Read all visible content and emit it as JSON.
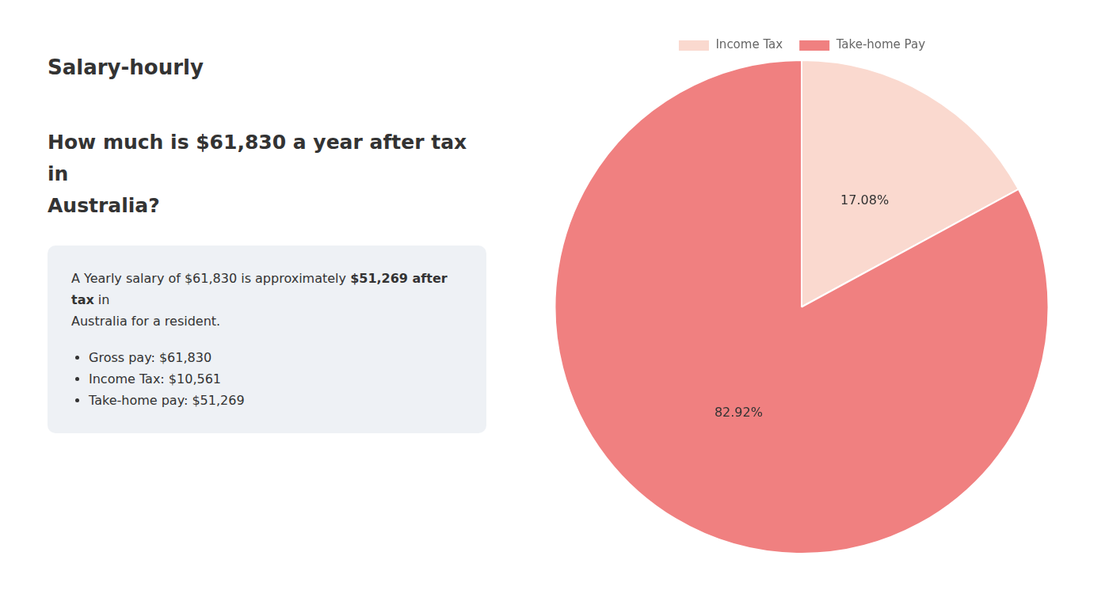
{
  "chart_data": {
    "type": "pie",
    "title": [
      "How much is $61,830 a year after tax in",
      "Australia?"
    ],
    "annotations": [
      "S",
      "alary-hourly",
      "A Yearly salary of $61,830 is approximately ",
      "$51,269 after tax",
      " in",
      "Australia for a resident.",
      "Gross pay: $61,830",
      "Income Tax: $10,561",
      "Take-home pay: $51,269"
    ],
    "categories": [
      "Income Tax",
      "Take-home Pay"
    ],
    "values": [
      17.08,
      82.92
    ],
    "value_labels": [
      "17.08%",
      "82.92%"
    ],
    "colors": [
      "#fad9cf",
      "#f08080"
    ],
    "data_labels": true,
    "legend": "top"
  }
}
